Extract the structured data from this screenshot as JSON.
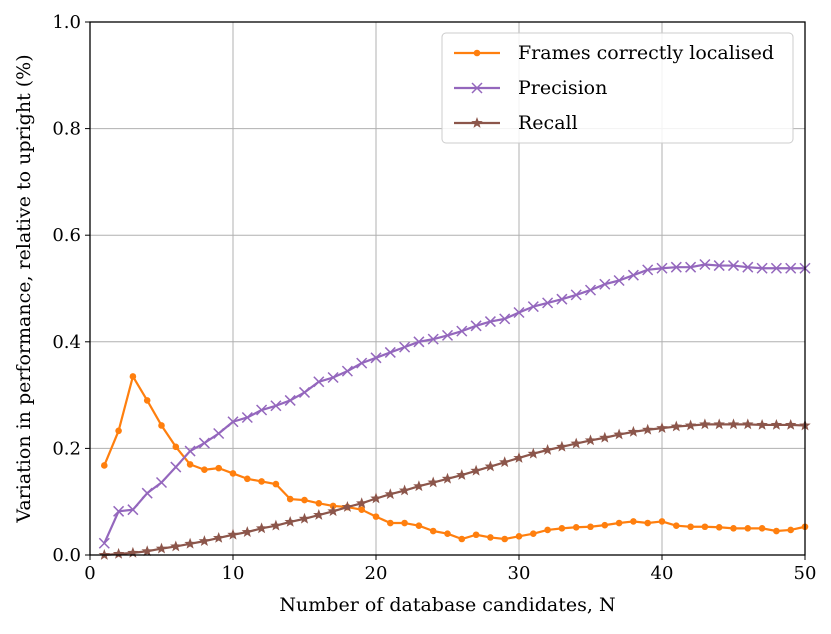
{
  "chart_data": {
    "type": "line",
    "title": "",
    "xlabel": "Number of database candidates, N",
    "ylabel": "Variation in performance, relative to upright (%)",
    "xlim": [
      0,
      50
    ],
    "ylim": [
      0,
      1.0
    ],
    "xticks": [
      0,
      10,
      20,
      30,
      40,
      50
    ],
    "yticks": [
      0.0,
      0.2,
      0.4,
      0.6,
      0.8,
      1.0
    ],
    "xtick_labels": [
      "0",
      "10",
      "20",
      "30",
      "40",
      "50"
    ],
    "ytick_labels": [
      "0.0",
      "0.2",
      "0.4",
      "0.6",
      "0.8",
      "1.0"
    ],
    "grid": true,
    "legend_position": "top-right",
    "x": [
      1,
      2,
      3,
      4,
      5,
      6,
      7,
      8,
      9,
      10,
      11,
      12,
      13,
      14,
      15,
      16,
      17,
      18,
      19,
      20,
      21,
      22,
      23,
      24,
      25,
      26,
      27,
      28,
      29,
      30,
      31,
      32,
      33,
      34,
      35,
      36,
      37,
      38,
      39,
      40,
      41,
      42,
      43,
      44,
      45,
      46,
      47,
      48,
      49,
      50
    ],
    "series": [
      {
        "name": "Frames correctly localised",
        "color": "#ff7f0e",
        "marker": "circle",
        "values": [
          0.168,
          0.233,
          0.335,
          0.29,
          0.243,
          0.203,
          0.17,
          0.16,
          0.163,
          0.153,
          0.143,
          0.138,
          0.133,
          0.105,
          0.103,
          0.097,
          0.092,
          0.09,
          0.085,
          0.072,
          0.06,
          0.06,
          0.055,
          0.045,
          0.04,
          0.03,
          0.038,
          0.033,
          0.03,
          0.035,
          0.04,
          0.047,
          0.05,
          0.052,
          0.053,
          0.056,
          0.06,
          0.063,
          0.06,
          0.063,
          0.055,
          0.053,
          0.053,
          0.052,
          0.05,
          0.05,
          0.05,
          0.045,
          0.047,
          0.053
        ]
      },
      {
        "name": "Precision",
        "color": "#9467bd",
        "marker": "x",
        "values": [
          0.022,
          0.082,
          0.085,
          0.116,
          0.136,
          0.165,
          0.195,
          0.21,
          0.228,
          0.25,
          0.258,
          0.272,
          0.28,
          0.29,
          0.305,
          0.325,
          0.333,
          0.345,
          0.36,
          0.37,
          0.38,
          0.39,
          0.4,
          0.405,
          0.412,
          0.42,
          0.43,
          0.438,
          0.443,
          0.455,
          0.466,
          0.473,
          0.48,
          0.488,
          0.497,
          0.508,
          0.515,
          0.525,
          0.535,
          0.538,
          0.54,
          0.54,
          0.545,
          0.543,
          0.543,
          0.54,
          0.538,
          0.538,
          0.538,
          0.538
        ]
      },
      {
        "name": "Recall",
        "color": "#8c564b",
        "marker": "star",
        "values": [
          0.0,
          0.002,
          0.004,
          0.007,
          0.012,
          0.016,
          0.021,
          0.026,
          0.032,
          0.038,
          0.043,
          0.05,
          0.055,
          0.062,
          0.068,
          0.075,
          0.082,
          0.09,
          0.097,
          0.106,
          0.114,
          0.121,
          0.129,
          0.136,
          0.143,
          0.15,
          0.158,
          0.166,
          0.174,
          0.182,
          0.19,
          0.197,
          0.203,
          0.209,
          0.215,
          0.22,
          0.226,
          0.231,
          0.235,
          0.238,
          0.241,
          0.243,
          0.245,
          0.245,
          0.245,
          0.245,
          0.244,
          0.244,
          0.244,
          0.243
        ]
      }
    ]
  }
}
